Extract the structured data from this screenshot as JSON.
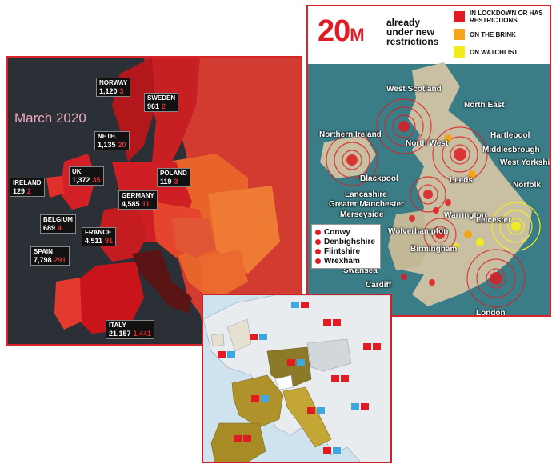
{
  "panel1": {
    "title": "March 2020",
    "countries": [
      {
        "name": "NORWAY",
        "cases": "1,120",
        "deaths": "3"
      },
      {
        "name": "SWEDEN",
        "cases": "961",
        "deaths": "2"
      },
      {
        "name": "NETH.",
        "cases": "1,135",
        "deaths": "20"
      },
      {
        "name": "UK",
        "cases": "1,372",
        "deaths": "35"
      },
      {
        "name": "IRELAND",
        "cases": "129",
        "deaths": "2"
      },
      {
        "name": "POLAND",
        "cases": "119",
        "deaths": "3"
      },
      {
        "name": "GERMANY",
        "cases": "4,585",
        "deaths": "11"
      },
      {
        "name": "BELGIUM",
        "cases": "689",
        "deaths": "4"
      },
      {
        "name": "FRANCE",
        "cases": "4,511",
        "deaths": "91"
      },
      {
        "name": "SPAIN",
        "cases": "7,798",
        "deaths": "291"
      },
      {
        "name": "ITALY",
        "cases": "21,157",
        "deaths": "1,441"
      }
    ]
  },
  "panel2": {
    "headline_number": "20",
    "headline_unit": "M",
    "headline_lines": [
      "already",
      "under new",
      "restrictions"
    ],
    "legend": [
      {
        "label": "IN LOCKDOWN OR HAS RESTRICTIONS",
        "color": "#e01b22"
      },
      {
        "label": "ON THE BRINK",
        "color": "#f2a51a"
      },
      {
        "label": "ON WATCHLIST",
        "color": "#f2ec1f"
      }
    ],
    "places": [
      "West Scotland",
      "North East",
      "Northern Ireland",
      "North West",
      "Hartlepool",
      "Middlesbrough",
      "West Yorkshire",
      "Blackpool",
      "Leeds",
      "Norfolk",
      "Lancashire",
      "Greater Manchester",
      "Merseyside",
      "Warrington",
      "Leicester",
      "Wolverhampton",
      "Birmingham",
      "Swansea",
      "Cardiff",
      "London"
    ],
    "wales_list": [
      "Conwy",
      "Denbighshire",
      "Flintshire",
      "Wrexham"
    ]
  },
  "colors": {
    "panel_border": "#d6242a",
    "sea_dark": "#2b2f36",
    "sea_teal": "#3a7d86",
    "land_teal": "#c9c0a4",
    "sea_blue": "#cfe3ef",
    "land_olive": "#b0922c"
  }
}
